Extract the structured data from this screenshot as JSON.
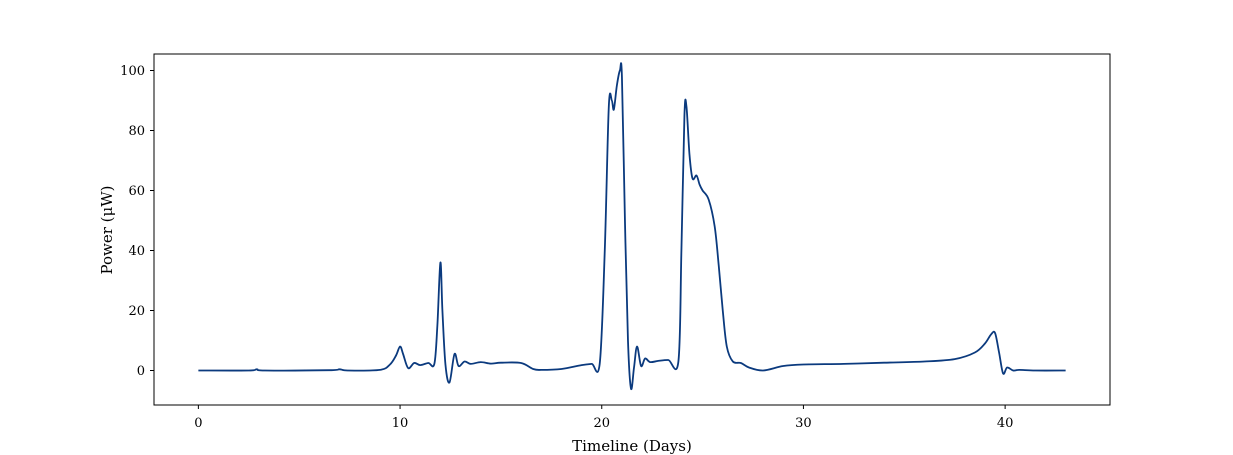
{
  "chart_data": {
    "type": "line",
    "title": "",
    "xlabel": "Timeline (Days)",
    "ylabel": "Power (μW)",
    "xlim": [
      -2.2,
      45.2
    ],
    "ylim": [
      -11.5,
      105.5
    ],
    "xticks": [
      0,
      10,
      20,
      30,
      40
    ],
    "yticks": [
      0,
      20,
      40,
      60,
      80,
      100
    ],
    "grid": false,
    "legend": "none",
    "line_color": "#0b3a7e",
    "series": [
      {
        "x": [
          0,
          2.5,
          2.9,
          3.3,
          6.5,
          7.0,
          7.4,
          9.0,
          9.5,
          9.8,
          10.0,
          10.15,
          10.4,
          10.7,
          11.0,
          11.4,
          11.7,
          11.85,
          12.0,
          12.1,
          12.25,
          12.45,
          12.7,
          12.9,
          13.2,
          13.5,
          14.0,
          14.5,
          15.0,
          16.0,
          16.6,
          17.0,
          18.0,
          19.0,
          19.5,
          19.9,
          20.15,
          20.35,
          20.5,
          20.6,
          20.75,
          20.9,
          21.0,
          21.15,
          21.3,
          21.45,
          21.6,
          21.75,
          21.95,
          22.15,
          22.4,
          22.8,
          23.3,
          23.8,
          23.95,
          24.1,
          24.2,
          24.35,
          24.5,
          24.7,
          24.85,
          25.0,
          25.3,
          25.6,
          25.8,
          26.0,
          26.2,
          26.5,
          26.9,
          27.3,
          28.0,
          29.0,
          30.0,
          32.0,
          34.0,
          36.0,
          37.5,
          38.5,
          39.0,
          39.3,
          39.5,
          39.7,
          39.9,
          40.1,
          40.4,
          40.7,
          41.5,
          43.0
        ],
        "y": [
          0,
          0,
          0.4,
          0,
          0.1,
          0.4,
          0,
          0.2,
          2,
          5,
          8,
          5.5,
          0.8,
          2.5,
          1.8,
          2.5,
          2.2,
          15,
          36,
          20,
          2,
          -4,
          5.5,
          1.5,
          3,
          2.2,
          2.8,
          2.3,
          2.6,
          2.5,
          0.5,
          0.2,
          0.5,
          1.8,
          2.2,
          2.3,
          40,
          88,
          90,
          87,
          95,
          100,
          98,
          50,
          10,
          -6,
          1,
          8,
          1.5,
          4,
          2.8,
          3.2,
          3.5,
          3,
          40,
          85,
          88,
          72,
          64,
          65,
          62,
          60,
          57,
          48,
          35,
          20,
          8,
          3,
          2.5,
          1,
          0,
          1.5,
          2,
          2.2,
          2.6,
          3.0,
          3.8,
          6,
          9,
          12,
          12.5,
          6,
          -1,
          1,
          0,
          0.2,
          0,
          0
        ]
      }
    ]
  }
}
